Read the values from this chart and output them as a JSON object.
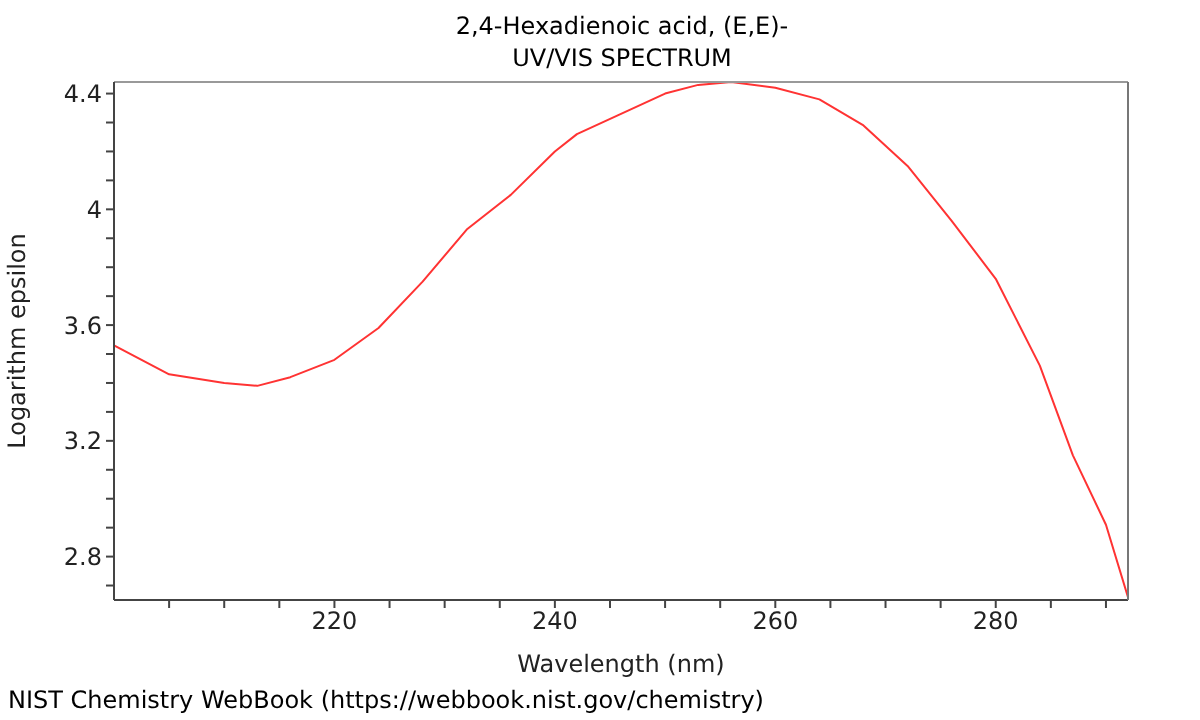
{
  "chart_data": {
    "type": "line",
    "title": "2,4-Hexadienoic acid, (E,E)-",
    "subtitle": "UV/VIS SPECTRUM",
    "xlabel": "Wavelength (nm)",
    "ylabel": "Logarithm epsilon",
    "annotations": [
      "NIST Chemistry WebBook (https://webbook.nist.gov/chemistry)"
    ],
    "x": [
      200,
      205,
      210,
      213,
      216,
      220,
      224,
      228,
      232,
      236,
      240,
      242,
      246,
      250,
      253,
      256,
      260,
      264,
      268,
      272,
      276,
      280,
      284,
      287,
      290,
      292
    ],
    "series": [
      {
        "color": "#ff3333",
        "values": [
          3.53,
          3.43,
          3.4,
          3.39,
          3.42,
          3.48,
          3.59,
          3.75,
          3.93,
          4.05,
          4.2,
          4.26,
          4.33,
          4.4,
          4.43,
          4.44,
          4.42,
          4.38,
          4.29,
          4.15,
          3.96,
          3.76,
          3.46,
          3.15,
          2.91,
          2.66
        ]
      }
    ],
    "xlim": [
      200,
      292
    ],
    "ylim": [
      2.65,
      4.44
    ],
    "xticks": [
      {
        "value": 205,
        "label": null
      },
      {
        "value": 210,
        "label": null
      },
      {
        "value": 215,
        "label": null
      },
      220,
      {
        "value": 225,
        "label": null
      },
      {
        "value": 230,
        "label": null
      },
      {
        "value": 235,
        "label": null
      },
      240,
      {
        "value": 245,
        "label": null
      },
      {
        "value": 250,
        "label": null
      },
      {
        "value": 255,
        "label": null
      },
      260,
      {
        "value": 265,
        "label": null
      },
      {
        "value": 270,
        "label": null
      },
      {
        "value": 275,
        "label": null
      },
      280,
      {
        "value": 285,
        "label": null
      },
      {
        "value": 290,
        "label": null
      }
    ],
    "yticks": [
      {
        "value": 2.7,
        "label": null
      },
      2.8,
      {
        "value": 2.9,
        "label": null
      },
      {
        "value": 3.0,
        "label": null
      },
      {
        "value": 3.1,
        "label": null
      },
      3.2,
      {
        "value": 3.3,
        "label": null
      },
      {
        "value": 3.4,
        "label": null
      },
      {
        "value": 3.5,
        "label": null
      },
      3.6,
      {
        "value": 3.7,
        "label": null
      },
      {
        "value": 3.8,
        "label": null
      },
      {
        "value": 3.9,
        "label": null
      },
      4,
      {
        "value": 4.1,
        "label": null
      },
      {
        "value": 4.2,
        "label": null
      },
      {
        "value": 4.3,
        "label": null
      },
      4.4
    ],
    "grid": false,
    "legend": false,
    "marker": "none",
    "line_style": "solid"
  }
}
